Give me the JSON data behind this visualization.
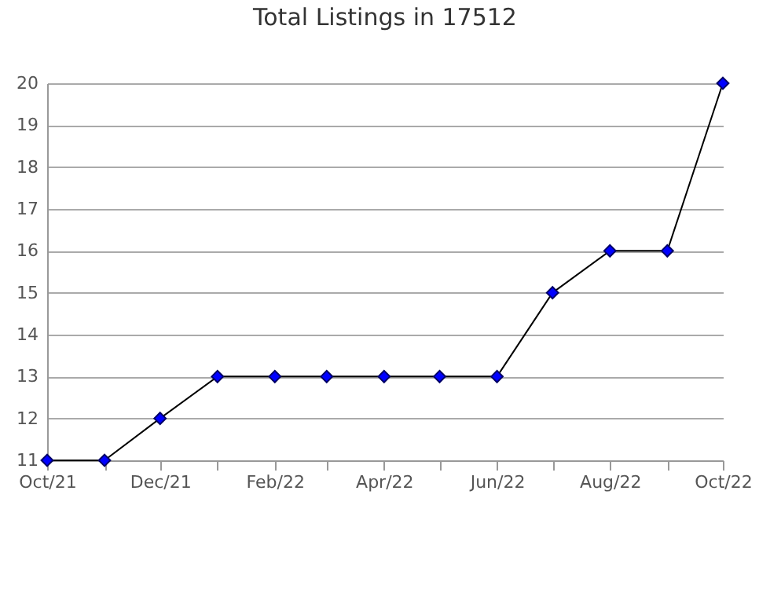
{
  "chart_data": {
    "type": "line",
    "title": "Total Listings in 17512",
    "x": [
      "2021-10",
      "2021-11",
      "2021-12",
      "2022-01",
      "2022-02",
      "2022-03",
      "2022-04",
      "2022-05",
      "2022-06",
      "2022-07",
      "2022-08",
      "2022-09",
      "2022-10"
    ],
    "series": [
      {
        "color": "#000000",
        "values": [
          11,
          11,
          12,
          13,
          13,
          13,
          13,
          13,
          13,
          15,
          16,
          16,
          20
        ]
      }
    ],
    "marker": "diamond",
    "grid": "y",
    "xlim": [
      "2021-10",
      "2022-10"
    ],
    "xticks": [
      {
        "value": "2021-10",
        "label": "Oct/21"
      },
      {
        "value": "2021-11",
        "label": null
      },
      {
        "value": "2021-12",
        "label": "Dec/21"
      },
      {
        "value": "2022-01",
        "label": null
      },
      {
        "value": "2022-02",
        "label": "Feb/22"
      },
      {
        "value": "2022-03",
        "label": null
      },
      {
        "value": "2022-04",
        "label": "Apr/22"
      },
      {
        "value": "2022-05",
        "label": null
      },
      {
        "value": "2022-06",
        "label": "Jun/22"
      },
      {
        "value": "2022-07",
        "label": null
      },
      {
        "value": "2022-08",
        "label": "Aug/22"
      },
      {
        "value": "2022-09",
        "label": null
      },
      {
        "value": "2022-10",
        "label": "Oct/22"
      }
    ],
    "ylim": [
      11,
      20
    ],
    "yticks": [
      11,
      12,
      13,
      14,
      15,
      16,
      17,
      18,
      19,
      20
    ]
  }
}
